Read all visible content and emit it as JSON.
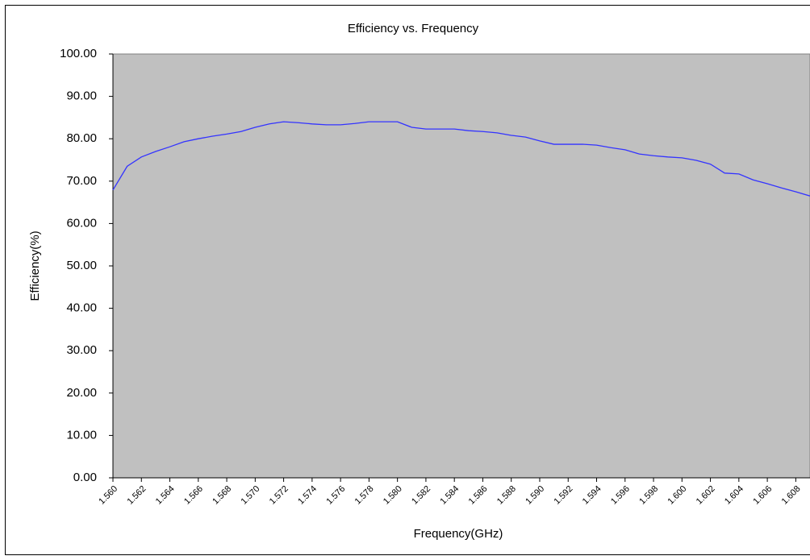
{
  "chart_data": {
    "type": "line",
    "title": "Efficiency vs. Frequency",
    "x_label": "Frequency(GHz)",
    "y_label": "Efficiency(%)",
    "x": [
      1.56,
      1.561,
      1.562,
      1.563,
      1.564,
      1.565,
      1.566,
      1.567,
      1.568,
      1.569,
      1.57,
      1.571,
      1.572,
      1.573,
      1.574,
      1.575,
      1.576,
      1.577,
      1.578,
      1.579,
      1.58,
      1.581,
      1.582,
      1.583,
      1.584,
      1.585,
      1.586,
      1.587,
      1.588,
      1.589,
      1.59,
      1.591,
      1.592,
      1.593,
      1.594,
      1.595,
      1.596,
      1.597,
      1.598,
      1.599,
      1.6,
      1.601,
      1.602,
      1.603,
      1.604,
      1.605,
      1.606,
      1.607,
      1.608,
      1.609
    ],
    "series": [
      {
        "name": "Efficiency",
        "color": "#3333ff",
        "values": [
          67.9,
          73.5,
          75.7,
          77.0,
          78.1,
          79.3,
          80.0,
          80.6,
          81.1,
          81.7,
          82.7,
          83.5,
          84.0,
          83.8,
          83.5,
          83.3,
          83.3,
          83.6,
          84.0,
          84.0,
          84.0,
          82.7,
          82.3,
          82.3,
          82.3,
          81.9,
          81.7,
          81.4,
          80.8,
          80.4,
          79.5,
          78.7,
          78.7,
          78.7,
          78.5,
          77.9,
          77.4,
          76.4,
          76.0,
          75.7,
          75.5,
          74.9,
          74.0,
          71.9,
          71.7,
          70.3,
          69.4,
          68.4,
          67.5,
          66.5
        ]
      }
    ],
    "xlim": [
      1.56,
      1.609
    ],
    "xticks": [
      {
        "value": 1.56,
        "label": "1.560"
      },
      {
        "value": 1.562,
        "label": "1.562"
      },
      {
        "value": 1.564,
        "label": "1.564"
      },
      {
        "value": 1.566,
        "label": "1.566"
      },
      {
        "value": 1.568,
        "label": "1.568"
      },
      {
        "value": 1.57,
        "label": "1.570"
      },
      {
        "value": 1.572,
        "label": "1.572"
      },
      {
        "value": 1.574,
        "label": "1.574"
      },
      {
        "value": 1.576,
        "label": "1.576"
      },
      {
        "value": 1.578,
        "label": "1.578"
      },
      {
        "value": 1.58,
        "label": "1.580"
      },
      {
        "value": 1.582,
        "label": "1.582"
      },
      {
        "value": 1.584,
        "label": "1.584"
      },
      {
        "value": 1.586,
        "label": "1.586"
      },
      {
        "value": 1.588,
        "label": "1.588"
      },
      {
        "value": 1.59,
        "label": "1.590"
      },
      {
        "value": 1.592,
        "label": "1.592"
      },
      {
        "value": 1.594,
        "label": "1.594"
      },
      {
        "value": 1.596,
        "label": "1.596"
      },
      {
        "value": 1.598,
        "label": "1.598"
      },
      {
        "value": 1.6,
        "label": "1.600"
      },
      {
        "value": 1.602,
        "label": "1.602"
      },
      {
        "value": 1.604,
        "label": "1.604"
      },
      {
        "value": 1.606,
        "label": "1.606"
      },
      {
        "value": 1.608,
        "label": "1.608"
      }
    ],
    "ylim": [
      0,
      100
    ],
    "yticks": [
      {
        "value": 0,
        "label": "0.00"
      },
      {
        "value": 10,
        "label": "10.00"
      },
      {
        "value": 20,
        "label": "20.00"
      },
      {
        "value": 30,
        "label": "30.00"
      },
      {
        "value": 40,
        "label": "40.00"
      },
      {
        "value": 50,
        "label": "50.00"
      },
      {
        "value": 60,
        "label": "60.00"
      },
      {
        "value": 70,
        "label": "70.00"
      },
      {
        "value": 80,
        "label": "80.00"
      },
      {
        "value": 90,
        "label": "90.00"
      },
      {
        "value": 100,
        "label": "100.00"
      }
    ],
    "grid": false,
    "plot_background": "#c0c0c0"
  }
}
